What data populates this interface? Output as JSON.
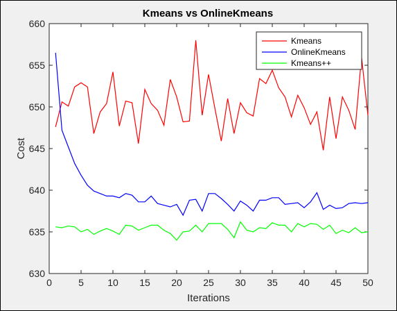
{
  "chart_data": {
    "type": "line",
    "title": "Kmeans vs OnlineKmeans",
    "xlabel": "Iterations",
    "ylabel": "Cost",
    "xlim": [
      0,
      50
    ],
    "ylim": [
      630,
      660
    ],
    "xticks": [
      0,
      5,
      10,
      15,
      20,
      25,
      30,
      35,
      40,
      45,
      50
    ],
    "yticks": [
      630,
      635,
      640,
      645,
      650,
      655,
      660
    ],
    "grid": false,
    "legend_position": "top-right",
    "x": [
      1,
      2,
      3,
      4,
      5,
      6,
      7,
      8,
      9,
      10,
      11,
      12,
      13,
      14,
      15,
      16,
      17,
      18,
      19,
      20,
      21,
      22,
      23,
      24,
      25,
      26,
      27,
      28,
      29,
      30,
      31,
      32,
      33,
      34,
      35,
      36,
      37,
      38,
      39,
      40,
      41,
      42,
      43,
      44,
      45,
      46,
      47,
      48,
      49,
      50
    ],
    "series": [
      {
        "name": "Kmeans",
        "color": "#ff0000",
        "values": [
          647.6,
          650.6,
          650.1,
          652.4,
          652.9,
          652.4,
          646.8,
          649.4,
          650.4,
          654.2,
          647.7,
          650.7,
          650.5,
          645.6,
          652.1,
          650.4,
          649.6,
          647.8,
          653.3,
          651.2,
          648.2,
          648.3,
          658.0,
          649.0,
          653.9,
          649.8,
          645.9,
          651.0,
          646.8,
          650.5,
          649.3,
          648.9,
          653.4,
          652.8,
          654.4,
          652.3,
          651.2,
          648.8,
          651.4,
          649.9,
          647.9,
          649.4,
          644.8,
          651.2,
          646.2,
          651.2,
          649.6,
          647.3,
          656.0,
          649.0
        ]
      },
      {
        "name": "OnlineKmeans",
        "color": "#0000ff",
        "values": [
          656.5,
          647.2,
          645.2,
          643.2,
          641.8,
          640.6,
          639.9,
          639.6,
          639.3,
          639.3,
          639.1,
          639.6,
          639.4,
          638.6,
          638.6,
          639.3,
          638.4,
          638.2,
          638.0,
          638.3,
          637.0,
          638.8,
          638.9,
          637.5,
          639.6,
          639.6,
          639.0,
          638.3,
          637.5,
          638.7,
          638.2,
          637.5,
          638.8,
          638.8,
          639.1,
          639.1,
          638.3,
          638.4,
          638.5,
          637.9,
          638.6,
          639.7,
          637.7,
          638.2,
          637.8,
          637.9,
          638.4,
          638.5,
          638.4,
          638.5
        ]
      },
      {
        "name": "Kmeans++",
        "color": "#00ff00",
        "values": [
          635.6,
          635.5,
          635.7,
          635.6,
          635.0,
          635.3,
          634.7,
          635.1,
          635.4,
          635.1,
          634.7,
          635.8,
          635.7,
          635.2,
          635.5,
          635.8,
          635.8,
          635.2,
          634.8,
          634.0,
          635.0,
          635.1,
          635.8,
          635.0,
          636.0,
          636.0,
          636.0,
          635.3,
          634.3,
          636.2,
          635.2,
          635.0,
          635.5,
          635.4,
          636.1,
          635.8,
          635.8,
          635.0,
          636.0,
          635.6,
          636.0,
          635.9,
          635.3,
          635.8,
          634.8,
          635.2,
          634.9,
          635.5,
          634.9,
          635.0
        ]
      }
    ]
  }
}
